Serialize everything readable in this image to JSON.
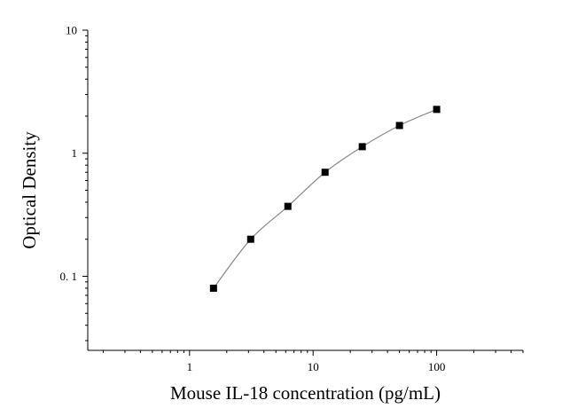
{
  "chart_data": {
    "type": "scatter",
    "xlabel": "Mouse IL-18 concentration (pg/mL)",
    "ylabel": "Optical Density",
    "x_scale": "log",
    "y_scale": "log",
    "xlim": [
      0.15,
      500
    ],
    "ylim": [
      0.025,
      10
    ],
    "x_ticks": [
      {
        "value": 1,
        "label": "1"
      },
      {
        "value": 10,
        "label": "10"
      },
      {
        "value": 100,
        "label": "100"
      }
    ],
    "y_ticks": [
      {
        "value": 0.1,
        "label": "0. 1"
      },
      {
        "value": 1,
        "label": "1"
      },
      {
        "value": 10,
        "label": "10"
      }
    ],
    "grid": false,
    "series": [
      {
        "marker": "square",
        "color": "#000000",
        "points": [
          {
            "x": 1.5625,
            "y": 0.08
          },
          {
            "x": 3.125,
            "y": 0.2
          },
          {
            "x": 6.25,
            "y": 0.37
          },
          {
            "x": 12.5,
            "y": 0.7
          },
          {
            "x": 25,
            "y": 1.13
          },
          {
            "x": 50,
            "y": 1.68
          },
          {
            "x": 100,
            "y": 2.27
          }
        ]
      }
    ],
    "fit_curve": {
      "color": "#888888",
      "x_range": [
        1.5625,
        100
      ]
    }
  }
}
